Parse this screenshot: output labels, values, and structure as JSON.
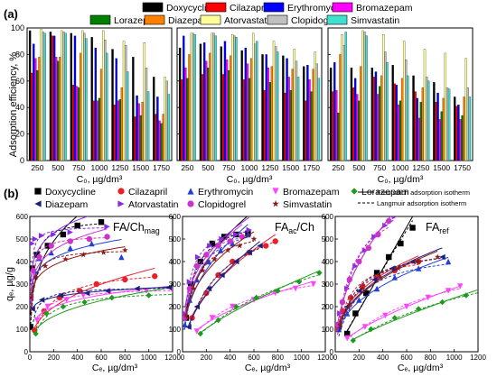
{
  "chart_data": {
    "panel_a": {
      "panel_label": "(a)",
      "type": "bar",
      "categories": [
        "250",
        "500",
        "750",
        "1000",
        "1250",
        "1500",
        "1750"
      ],
      "ylabel": "Adsorption efficiency, %",
      "xlabel": "C₀, µg/dm³",
      "ylim": [
        0,
        100
      ],
      "yticks": [
        "0",
        "20",
        "40",
        "60",
        "80",
        "100"
      ],
      "legend": [
        {
          "name": "Doxycycline",
          "color": "#000000"
        },
        {
          "name": "Cilazapril",
          "color": "#ff0000"
        },
        {
          "name": "Erythromycin",
          "color": "#0000ff"
        },
        {
          "name": "Bromazepam",
          "color": "#ff00ff"
        },
        {
          "name": "Lorazepam",
          "color": "#008000"
        },
        {
          "name": "Diazepam",
          "color": "#ff8000"
        },
        {
          "name": "Atorvastatin",
          "color": "#ffff99"
        },
        {
          "name": "Clopidogrel",
          "color": "#c0c0c0"
        },
        {
          "name": "Simvastatin",
          "color": "#40e0d0"
        }
      ],
      "subplots": [
        {
          "values": [
            [
              98,
              97,
              96,
              93,
              84,
              78,
              63
            ],
            [
              66,
              94,
              57,
              45,
              42,
              33,
              35
            ],
            [
              88,
              94,
              94,
              85,
              77,
              49,
              48
            ],
            [
              77,
              78,
              56,
              45,
              45,
              43,
              30
            ],
            [
              68,
              75,
              55,
              47,
              46,
              34,
              28
            ],
            [
              78,
              78,
              81,
              69,
              55,
              44,
              35
            ],
            [
              99,
              98,
              98,
              98,
              90,
              89,
              63
            ],
            [
              97,
              97,
              96,
              91,
              87,
              70,
              60
            ],
            [
              96,
              96,
              92,
              81,
              67,
              52,
              50
            ]
          ]
        },
        {
          "values": [
            [
              85,
              88,
              86,
              83,
              80,
              79,
              71
            ],
            [
              61,
              65,
              65,
              61,
              53,
              51,
              45
            ],
            [
              94,
              89,
              90,
              85,
              80,
              77,
              72
            ],
            [
              70,
              75,
              76,
              73,
              70,
              63,
              61
            ],
            [
              62,
              70,
              68,
              62,
              59,
              53,
              52
            ],
            [
              80,
              81,
              79,
              77,
              71,
              69,
              69
            ],
            [
              96,
              96,
              95,
              96,
              90,
              84,
              82
            ],
            [
              96,
              96,
              94,
              88,
              86,
              75,
              73
            ],
            [
              95,
              94,
              93,
              90,
              82,
              63,
              62
            ]
          ]
        },
        {
          "values": [
            [
              70,
              70,
              70,
              72,
              64,
              59,
              48
            ],
            [
              52,
              55,
              63,
              58,
              52,
              44,
              41
            ],
            [
              74,
              62,
              67,
              57,
              47,
              51,
              42
            ],
            [
              53,
              50,
              50,
              42,
              32,
              31,
              31
            ],
            [
              36,
              45,
              56,
              45,
              44,
              37,
              34
            ],
            [
              80,
              71,
              64,
              62,
              55,
              47,
              48
            ],
            [
              95,
              98,
              95,
              90,
              84,
              81,
              77
            ],
            [
              87,
              97,
              82,
              76,
              63,
              55,
              55
            ],
            [
              97,
              94,
              74,
              64,
              60,
              54,
              48
            ]
          ]
        }
      ]
    },
    "panel_b": {
      "panel_label": "(b)",
      "type": "scatter",
      "ylabel": "qₑ, µg/g",
      "xlabel": "Cₑ, µg/dm³",
      "xlim": [
        0,
        1200
      ],
      "ylim": [
        0,
        600
      ],
      "xticks": [
        "0",
        "200",
        "400",
        "600",
        "800",
        "1000",
        "1200"
      ],
      "yticks": [
        "0",
        "100",
        "200",
        "300",
        "400",
        "500",
        "600"
      ],
      "legend_row1": [
        {
          "name": "Doxycycline",
          "color": "#000000",
          "marker": "square"
        },
        {
          "name": "Cilazapril",
          "color": "#e8202a",
          "marker": "circle"
        },
        {
          "name": "Erythromycin",
          "color": "#2040d8",
          "marker": "triangle-up"
        },
        {
          "name": "Bromazepam",
          "color": "#ff44ff",
          "marker": "triangle-down"
        },
        {
          "name": "Lorazepam",
          "color": "#1e9a1e",
          "marker": "diamond"
        }
      ],
      "legend_row2": [
        {
          "name": "Diazepam",
          "color": "#1a2080",
          "marker": "triangle-left"
        },
        {
          "name": "Atorvastatin",
          "color": "#8a2be2",
          "marker": "triangle-right"
        },
        {
          "name": "Clopidogrel",
          "color": "#cc33cc",
          "marker": "circle"
        },
        {
          "name": "Simvastatin",
          "color": "#8b1a1a",
          "marker": "star"
        }
      ],
      "line_legend": [
        {
          "name": "Freundlich adsorption isotherm",
          "style": "solid"
        },
        {
          "name": "Langmuir adsorption isotherm",
          "style": "dashed"
        }
      ],
      "subplots": [
        {
          "title_base": "FA/Ch",
          "title_sub": "mag",
          "series": [
            {
              "name": "Doxycycline",
              "x": [
                5,
                20,
                60,
                150,
                280,
                400,
                600
              ],
              "y": [
                110,
                370,
                430,
                470,
                520,
                560,
                575
              ]
            },
            {
              "name": "Cilazapril",
              "x": [
                40,
                120,
                250,
                420,
                560,
                800,
                1050
              ],
              "y": [
                95,
                180,
                240,
                270,
                300,
                320,
                335
              ]
            },
            {
              "name": "Erythromycin",
              "x": [
                10,
                40,
                80,
                180,
                340,
                520,
                770
              ],
              "y": [
                240,
                360,
                415,
                440,
                460,
                480,
                420
              ]
            },
            {
              "name": "Bromazepam",
              "x": [
                60,
                150,
                310,
                450,
                670,
                980,
                1200
              ],
              "y": [
                140,
                200,
                230,
                250,
                265,
                270,
                270
              ]
            },
            {
              "name": "Lorazepam",
              "x": [
                50,
                140,
                280,
                460,
                690,
                1000,
                1210
              ],
              "y": [
                80,
                170,
                200,
                220,
                240,
                250,
                255
              ]
            },
            {
              "name": "Diazepam",
              "x": [
                20,
                100,
                260,
                480,
                650,
                900,
                1170
              ],
              "y": [
                190,
                230,
                250,
                260,
                270,
                280,
                285
              ]
            },
            {
              "name": "Atorvastatin",
              "x": [
                5,
                20,
                45,
                100,
                200,
                340,
                650
              ],
              "y": [
                230,
                480,
                500,
                515,
                520,
                530,
                555
              ]
            },
            {
              "name": "Clopidogrel",
              "x": [
                8,
                30,
                80,
                180,
                340,
                500,
                650
              ],
              "y": [
                240,
                360,
                420,
                470,
                490,
                500,
                510
              ]
            },
            {
              "name": "Simvastatin",
              "x": [
                10,
                50,
                130,
                300,
                450,
                620,
                800
              ],
              "y": [
                240,
                330,
                380,
                410,
                430,
                440,
                450
              ]
            }
          ]
        },
        {
          "title_base": "FA",
          "title_sub": "ac",
          "title_suffix": "/Ch",
          "series": [
            {
              "name": "Doxycycline",
              "x": [
                30,
                70,
                150,
                250,
                350,
                450,
                550
              ],
              "y": [
                150,
                300,
                400,
                480,
                510,
                520,
                525
              ]
            },
            {
              "name": "Cilazapril",
              "x": [
                80,
                200,
                300,
                420,
                560,
                700,
                780
              ],
              "y": [
                150,
                260,
                340,
                400,
                440,
                470,
                490
              ]
            },
            {
              "name": "Erythromycin",
              "x": [
                20,
                60,
                120,
                220,
                320,
                420,
                550
              ],
              "y": [
                120,
                230,
                320,
                400,
                450,
                480,
                520
              ]
            },
            {
              "name": "Bromazepam",
              "x": [
                120,
                250,
                420,
                600,
                780,
                950,
                1100
              ],
              "y": [
                90,
                150,
                200,
                230,
                260,
                280,
                300
              ]
            },
            {
              "name": "Lorazepam",
              "x": [
                150,
                300,
                450,
                620,
                800,
                980,
                1150
              ],
              "y": [
                80,
                140,
                200,
                240,
                270,
                310,
                350
              ]
            },
            {
              "name": "Diazepam",
              "x": [
                50,
                120,
                220,
                330,
                450,
                560,
                650
              ],
              "y": [
                110,
                200,
                280,
                340,
                400,
                440,
                470
              ]
            },
            {
              "name": "Atorvastatin",
              "x": [
                20,
                60,
                130,
                230,
                330,
                450,
                560
              ],
              "y": [
                170,
                310,
                420,
                470,
                500,
                520,
                540
              ]
            },
            {
              "name": "Clopidogrel",
              "x": [
                20,
                60,
                120,
                200,
                300,
                400,
                500
              ],
              "y": [
                150,
                280,
                380,
                430,
                470,
                490,
                510
              ]
            },
            {
              "name": "Simvastatin",
              "x": [
                30,
                90,
                170,
                270,
                380,
                480,
                600
              ],
              "y": [
                160,
                280,
                360,
                410,
                450,
                470,
                500
              ]
            }
          ]
        },
        {
          "title_base": "FA",
          "title_sub": "ref",
          "series": [
            {
              "name": "Doxycycline",
              "x": [
                100,
                170,
                260,
                350,
                450,
                550,
                650
              ],
              "y": [
                80,
                170,
                260,
                350,
                420,
                480,
                550
              ]
            },
            {
              "name": "Cilazapril",
              "x": [
                20,
                60,
                130,
                230,
                350,
                500,
                700
              ],
              "y": [
                100,
                180,
                240,
                290,
                330,
                360,
                400
              ]
            },
            {
              "name": "Erythromycin",
              "x": [
                30,
                100,
                200,
                350,
                500,
                700,
                950
              ],
              "y": [
                100,
                170,
                230,
                280,
                330,
                370,
                400
              ]
            },
            {
              "name": "Bromazepam",
              "x": [
                100,
                250,
                420,
                600,
                780,
                950,
                1050
              ],
              "y": [
                60,
                110,
                160,
                200,
                240,
                270,
                290
              ]
            },
            {
              "name": "Lorazepam",
              "x": [
                150,
                300,
                500,
                700,
                900,
                1100,
                1230
              ],
              "y": [
                50,
                100,
                150,
                190,
                220,
                250,
                260
              ]
            },
            {
              "name": "Diazepam",
              "x": [
                30,
                100,
                200,
                330,
                480,
                650,
                900
              ],
              "y": [
                110,
                200,
                270,
                320,
                370,
                400,
                420
              ]
            },
            {
              "name": "Atorvastatin",
              "x": [
                40,
                100,
                170,
                250,
                330,
                420,
                500
              ],
              "y": [
                170,
                280,
                380,
                450,
                510,
                560,
                600
              ]
            },
            {
              "name": "Clopidogrel",
              "x": [
                20,
                60,
                120,
                200,
                280,
                360,
                450
              ],
              "y": [
                120,
                220,
                320,
                400,
                460,
                520,
                580
              ]
            },
            {
              "name": "Simvastatin",
              "x": [
                40,
                120,
                230,
                380,
                530,
                700,
                860
              ],
              "y": [
                120,
                210,
                280,
                330,
                370,
                400,
                420
              ]
            }
          ]
        }
      ]
    }
  }
}
